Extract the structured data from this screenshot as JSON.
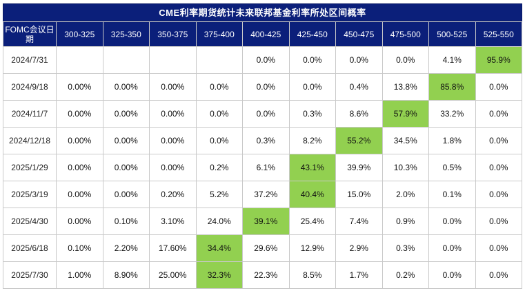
{
  "title": "CME利率期货统计未来联邦基金利率所处区间概率",
  "header": {
    "first_col": "FOMC会议日期",
    "columns": [
      "300-325",
      "325-350",
      "350-375",
      "375-400",
      "400-425",
      "425-450",
      "450-475",
      "475-500",
      "500-525",
      "525-550"
    ]
  },
  "highlight_color": "#92d050",
  "header_bg": "#0b1f7a",
  "rows": [
    {
      "date": "2024/7/31",
      "cells": [
        "",
        "",
        "",
        "",
        "0.0%",
        "0.0%",
        "0.0%",
        "0.0%",
        "4.1%",
        "95.9%"
      ],
      "hl": 9
    },
    {
      "date": "2024/9/18",
      "cells": [
        "0.00%",
        "0.00%",
        "0.00%",
        "0.0%",
        "0.0%",
        "0.0%",
        "0.4%",
        "13.8%",
        "85.8%",
        "0.0%"
      ],
      "hl": 8
    },
    {
      "date": "2024/11/7",
      "cells": [
        "0.00%",
        "0.00%",
        "0.00%",
        "0.0%",
        "0.0%",
        "0.3%",
        "8.6%",
        "57.9%",
        "33.2%",
        "0.0%"
      ],
      "hl": 7
    },
    {
      "date": "2024/12/18",
      "cells": [
        "0.00%",
        "0.00%",
        "0.00%",
        "0.0%",
        "0.3%",
        "8.2%",
        "55.2%",
        "34.5%",
        "1.8%",
        "0.0%"
      ],
      "hl": 6
    },
    {
      "date": "2025/1/29",
      "cells": [
        "0.00%",
        "0.00%",
        "0.00%",
        "0.2%",
        "6.1%",
        "43.1%",
        "39.9%",
        "10.3%",
        "0.5%",
        "0.0%"
      ],
      "hl": 5
    },
    {
      "date": "2025/3/19",
      "cells": [
        "0.00%",
        "0.00%",
        "0.20%",
        "5.2%",
        "37.2%",
        "40.4%",
        "15.0%",
        "2.0%",
        "0.1%",
        "0.0%"
      ],
      "hl": 5
    },
    {
      "date": "2025/4/30",
      "cells": [
        "0.00%",
        "0.10%",
        "3.10%",
        "24.0%",
        "39.1%",
        "25.4%",
        "7.4%",
        "0.9%",
        "0.0%",
        "0.0%"
      ],
      "hl": 4
    },
    {
      "date": "2025/6/18",
      "cells": [
        "0.10%",
        "2.20%",
        "17.60%",
        "34.4%",
        "29.6%",
        "12.9%",
        "2.9%",
        "0.3%",
        "0.0%",
        "0.0%"
      ],
      "hl": 3
    },
    {
      "date": "2025/7/30",
      "cells": [
        "1.00%",
        "8.90%",
        "25.00%",
        "32.3%",
        "22.3%",
        "8.5%",
        "1.7%",
        "0.2%",
        "0.0%",
        "0.0%"
      ],
      "hl": 3
    }
  ]
}
